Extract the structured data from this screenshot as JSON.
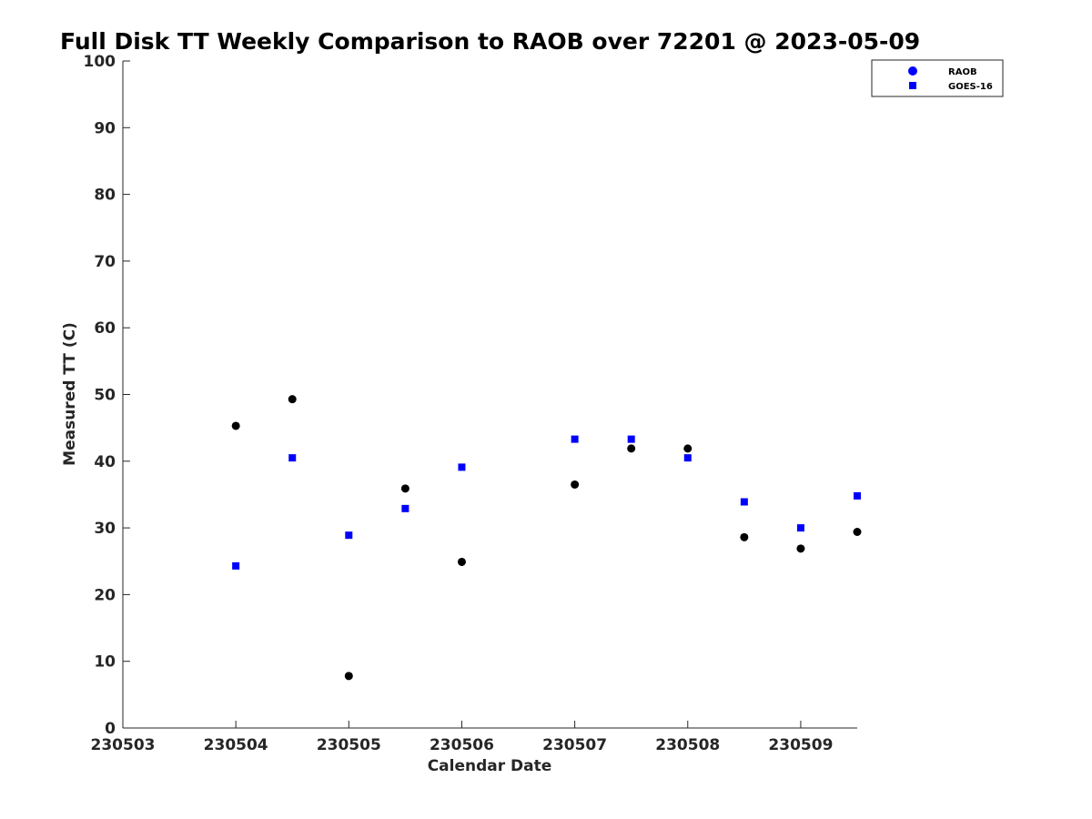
{
  "chart_data": {
    "type": "scatter",
    "title": "Full Disk TT Weekly Comparison to RAOB over 72201 @ 2023-05-09",
    "xlabel": "Calendar Date",
    "ylabel": "Measured TT (C)",
    "x_ticks": [
      "230503",
      "230504",
      "230505",
      "230506",
      "230507",
      "230508",
      "230509"
    ],
    "y_ticks": [
      "0",
      "10",
      "20",
      "30",
      "40",
      "50",
      "60",
      "70",
      "80",
      "90",
      "100"
    ],
    "xlim": [
      230503,
      230509.5
    ],
    "ylim": [
      0,
      100
    ],
    "grid": false,
    "legend_position": "top-right",
    "series": [
      {
        "name": "RAOB",
        "marker": "circle",
        "color": "#000000",
        "legend_color": "#0000ff",
        "points": [
          {
            "x": 230504.0,
            "y": 45.3
          },
          {
            "x": 230504.5,
            "y": 49.3
          },
          {
            "x": 230505.0,
            "y": 7.8
          },
          {
            "x": 230505.5,
            "y": 35.9
          },
          {
            "x": 230506.0,
            "y": 24.9
          },
          {
            "x": 230507.0,
            "y": 36.5
          },
          {
            "x": 230507.5,
            "y": 41.9
          },
          {
            "x": 230508.0,
            "y": 41.9
          },
          {
            "x": 230508.5,
            "y": 28.6
          },
          {
            "x": 230509.0,
            "y": 26.9
          },
          {
            "x": 230509.5,
            "y": 29.4
          }
        ]
      },
      {
        "name": "GOES-16",
        "marker": "square",
        "color": "#0000ff",
        "legend_color": "#0000ff",
        "points": [
          {
            "x": 230504.0,
            "y": 24.3
          },
          {
            "x": 230504.5,
            "y": 40.5
          },
          {
            "x": 230505.0,
            "y": 28.9
          },
          {
            "x": 230505.5,
            "y": 32.9
          },
          {
            "x": 230506.0,
            "y": 39.1
          },
          {
            "x": 230507.0,
            "y": 43.3
          },
          {
            "x": 230507.5,
            "y": 43.3
          },
          {
            "x": 230508.0,
            "y": 40.5
          },
          {
            "x": 230508.5,
            "y": 33.9
          },
          {
            "x": 230509.0,
            "y": 30.0
          },
          {
            "x": 230509.5,
            "y": 34.8
          }
        ]
      }
    ]
  }
}
